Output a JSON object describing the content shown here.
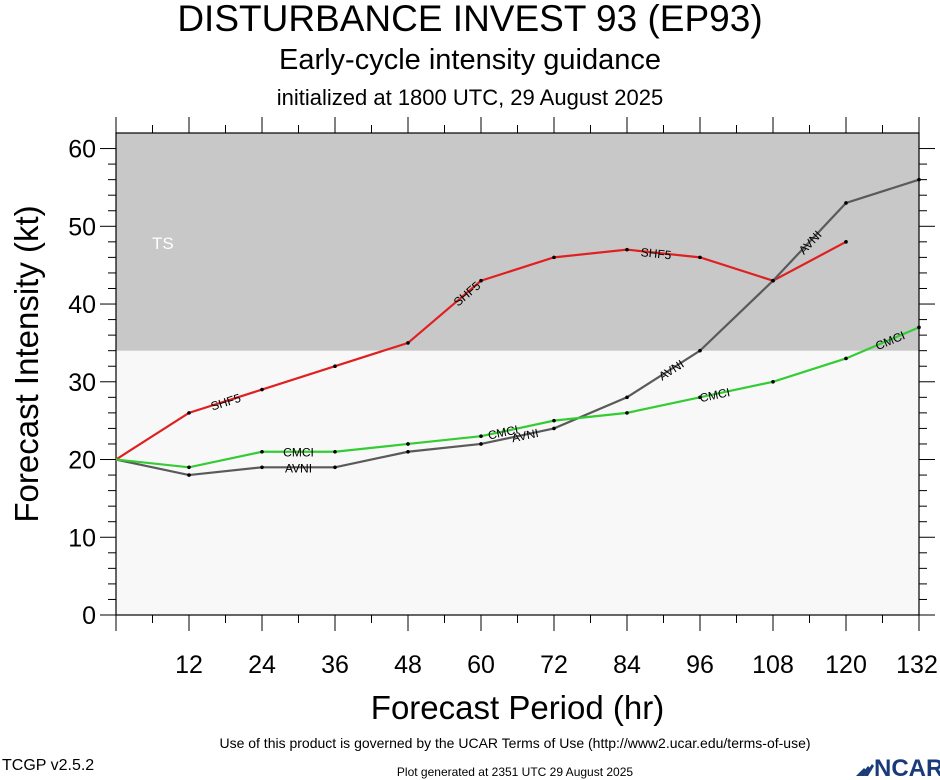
{
  "title": "DISTURBANCE INVEST 93 (EP93)",
  "subtitle": "Early-cycle intensity guidance",
  "init_line": "initialized at 1800 UTC, 29 August 2025",
  "footer": {
    "terms": "Use of this product is governed by the UCAR Terms of Use (http://www2.ucar.edu/terms-of-use)",
    "version": "TCGP v2.5.2",
    "generated": "Plot generated at 2351 UTC   29 August 2025",
    "logo_text": "NCAR"
  },
  "colors": {
    "ts_band": "#c8c8c8",
    "below_band": "#f8f8f8",
    "SHF5": "#e02020",
    "AVNI": "#5a5a5a",
    "CMCI": "#33cc33"
  },
  "chart_data": {
    "type": "line",
    "xlabel": "Forecast Period (hr)",
    "ylabel": "Forecast Intensity (kt)",
    "xlim": [
      0,
      132
    ],
    "ylim": [
      0,
      62
    ],
    "xticks": [
      12,
      24,
      36,
      48,
      60,
      72,
      84,
      96,
      108,
      120,
      132
    ],
    "yticks": [
      0,
      10,
      20,
      30,
      40,
      50,
      60
    ],
    "bands": [
      {
        "label": "TS",
        "from": 34,
        "to": 62
      }
    ],
    "series": [
      {
        "name": "SHF5",
        "x": [
          0,
          12,
          24,
          36,
          48,
          60,
          72,
          84,
          96,
          108,
          120
        ],
        "y": [
          20,
          26,
          29,
          32,
          35,
          43,
          46,
          47,
          46,
          43,
          48
        ]
      },
      {
        "name": "AVNI",
        "x": [
          0,
          12,
          24,
          36,
          48,
          60,
          72,
          84,
          96,
          108,
          120,
          132
        ],
        "y": [
          20,
          18,
          19,
          19,
          21,
          22,
          24,
          28,
          34,
          43,
          53,
          56
        ]
      },
      {
        "name": "CMCI",
        "x": [
          0,
          12,
          24,
          36,
          48,
          60,
          72,
          84,
          96,
          108,
          120,
          132
        ],
        "y": [
          20,
          19,
          21,
          21,
          22,
          23,
          25,
          26,
          28,
          30,
          33,
          37
        ]
      }
    ]
  }
}
